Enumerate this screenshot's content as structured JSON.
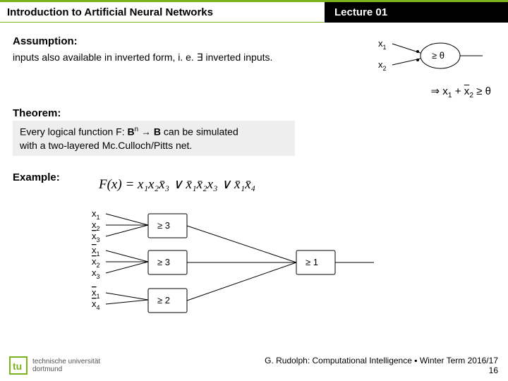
{
  "header": {
    "title_left": "Introduction to Artificial Neural Networks",
    "title_right": "Lecture 01",
    "accent_color": "#7ab51d"
  },
  "assumption": {
    "title": "Assumption:",
    "text_pre": "inputs also available in inverted form, i. e. ",
    "exists": "∃",
    "text_post": " inverted inputs."
  },
  "node": {
    "x1": "x",
    "x1_sub": "1",
    "x2": "x",
    "x2_sub": "2",
    "threshold": "≥ θ"
  },
  "implication": {
    "arrow": "⇒",
    "expr_parts": [
      "x",
      "1",
      " + ",
      "x",
      "2",
      " ≥ θ"
    ]
  },
  "theorem": {
    "title": "Theorem:",
    "line1_pre": "Every logical function F: ",
    "B": "B",
    "n": "n",
    "arrow": " → ",
    "line1_post": " can be simulated",
    "line2": "with a two-layered Mc.Culloch/Pitts net."
  },
  "example": {
    "title": "Example:",
    "formula_lhs": "F(x)  =  ",
    "formula_rhs_plain": "x₁x₂x̄₃ ∨ x̄₁x̄₂x₃ ∨ x̄₁x̄₄"
  },
  "network": {
    "inputs": [
      {
        "v": "x",
        "s": "1",
        "bar": false
      },
      {
        "v": "x",
        "s": "2",
        "bar": false
      },
      {
        "v": "x",
        "s": "3",
        "bar": true
      },
      {
        "v": "x",
        "s": "1",
        "bar": true
      },
      {
        "v": "x",
        "s": "2",
        "bar": true
      },
      {
        "v": "x",
        "s": "3",
        "bar": false
      },
      {
        "v": "x",
        "s": "1",
        "bar": true
      },
      {
        "v": "x",
        "s": "4",
        "bar": true
      }
    ],
    "hidden": [
      {
        "label": "≥ 3"
      },
      {
        "label": "≥ 3"
      },
      {
        "label": "≥ 2"
      }
    ],
    "output": {
      "label": "≥ 1"
    }
  },
  "footer": {
    "line1": "G. Rudolph: Computational Intelligence ▪ Winter Term 2016/17",
    "page": "16"
  },
  "logo": {
    "line1": "technische universität",
    "line2": "dortmund",
    "color": "#7ab51d"
  }
}
